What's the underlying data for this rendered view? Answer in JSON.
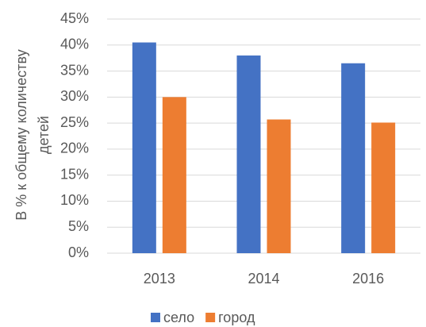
{
  "chart_data": {
    "type": "bar",
    "y_label": [
      "В % к общему количеству",
      "детей"
    ],
    "categories": [
      "2013",
      "2014",
      "2016"
    ],
    "series": [
      {
        "name": "село",
        "color": "#4472c4",
        "values": [
          40.5,
          38,
          36.5
        ]
      },
      {
        "name": "город",
        "color": "#ed7d31",
        "values": [
          30,
          25.7,
          25.1
        ]
      }
    ],
    "ylim": [
      0,
      45
    ],
    "yticks": [
      {
        "value": 0,
        "label": "0%"
      },
      {
        "value": 5,
        "label": "5%"
      },
      {
        "value": 10,
        "label": "10%"
      },
      {
        "value": 15,
        "label": "15%"
      },
      {
        "value": 20,
        "label": "20%"
      },
      {
        "value": 25,
        "label": "25%"
      },
      {
        "value": 30,
        "label": "30%"
      },
      {
        "value": 35,
        "label": "35%"
      },
      {
        "value": 40,
        "label": "40%"
      },
      {
        "value": 45,
        "label": "45%"
      }
    ],
    "grid": true,
    "legend": "bottom"
  }
}
